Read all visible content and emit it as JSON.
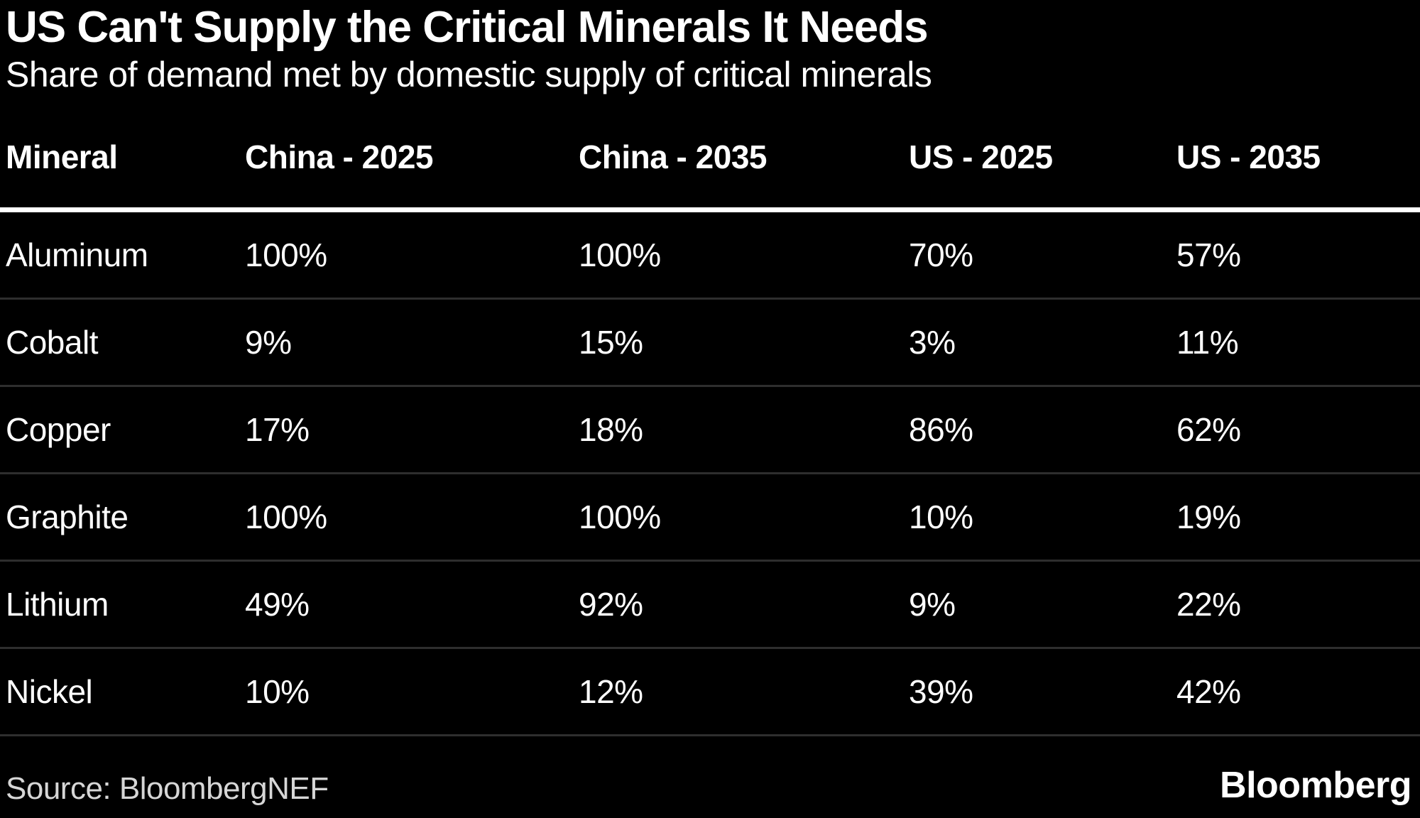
{
  "chart_data": {
    "type": "table",
    "title": "US Can't Supply the Critical Minerals It Needs",
    "subtitle": "Share of demand met by domestic supply of critical minerals",
    "columns": [
      "Mineral",
      "China - 2025",
      "China - 2035",
      "US - 2025",
      "US - 2035"
    ],
    "rows": [
      {
        "mineral": "Aluminum",
        "values": [
          "100%",
          "100%",
          "70%",
          "57%"
        ]
      },
      {
        "mineral": "Cobalt",
        "values": [
          "9%",
          "15%",
          "3%",
          "11%"
        ]
      },
      {
        "mineral": "Copper",
        "values": [
          "17%",
          "18%",
          "86%",
          "62%"
        ]
      },
      {
        "mineral": "Graphite",
        "values": [
          "100%",
          "100%",
          "10%",
          "19%"
        ]
      },
      {
        "mineral": "Lithium",
        "values": [
          "49%",
          "92%",
          "9%",
          "22%"
        ]
      },
      {
        "mineral": "Nickel",
        "values": [
          "10%",
          "12%",
          "39%",
          "42%"
        ]
      }
    ],
    "source": "Source: BloombergNEF",
    "brand": "Bloomberg",
    "layout": {
      "legend": "none",
      "grid": "horizontal-dividers"
    },
    "colors": {
      "background": "#000000",
      "text": "#ffffff",
      "muted_text": "#d6d6d6",
      "divider": "#2e2e2e",
      "header_rule": "#ffffff"
    }
  }
}
